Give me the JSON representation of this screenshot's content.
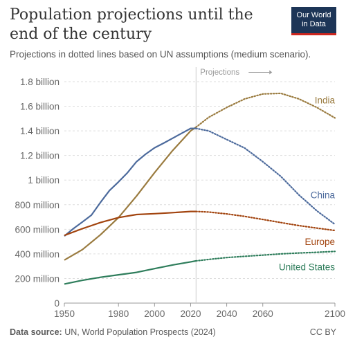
{
  "header": {
    "title": "Population projections until the end of the century",
    "subtitle": "Projections in dotted lines based on UN assumptions (medium scenario).",
    "logo_line1": "Our World",
    "logo_line2": "in Data"
  },
  "footer": {
    "source_label": "Data source:",
    "source_text": "UN, World Population Prospects (2024)",
    "license": "CC BY"
  },
  "chart_data": {
    "type": "line",
    "title": "Population projections until the end of the century",
    "subtitle": "Projections in dotted lines based on UN assumptions (medium scenario).",
    "xlim": [
      1950,
      2100
    ],
    "ylim": [
      0,
      1800000000
    ],
    "x_ticks": [
      1950,
      1980,
      2000,
      2020,
      2040,
      2060,
      2100
    ],
    "y_ticks": [
      {
        "value": 0,
        "label": "0"
      },
      {
        "value": 200000000,
        "label": "200 million"
      },
      {
        "value": 400000000,
        "label": "400 million"
      },
      {
        "value": 600000000,
        "label": "600 million"
      },
      {
        "value": 800000000,
        "label": "800 million"
      },
      {
        "value": 1000000000,
        "label": "1 billion"
      },
      {
        "value": 1200000000,
        "label": "1.2 billion"
      },
      {
        "value": 1400000000,
        "label": "1.4 billion"
      },
      {
        "value": 1600000000,
        "label": "1.6 billion"
      },
      {
        "value": 1800000000,
        "label": "1.8 billion"
      }
    ],
    "grid": true,
    "projection_start": 2023,
    "projection_label": "Projections",
    "series": [
      {
        "name": "India",
        "color": "#9a7b3f",
        "historical": [
          [
            1950,
            350000000
          ],
          [
            1960,
            435000000
          ],
          [
            1970,
            555000000
          ],
          [
            1980,
            695000000
          ],
          [
            1990,
            870000000
          ],
          [
            2000,
            1060000000
          ],
          [
            2010,
            1240000000
          ],
          [
            2020,
            1400000000
          ],
          [
            2023,
            1430000000
          ]
        ],
        "projected": [
          [
            2023,
            1430000000
          ],
          [
            2030,
            1510000000
          ],
          [
            2040,
            1590000000
          ],
          [
            2050,
            1660000000
          ],
          [
            2060,
            1700000000
          ],
          [
            2070,
            1705000000
          ],
          [
            2080,
            1660000000
          ],
          [
            2090,
            1590000000
          ],
          [
            2100,
            1505000000
          ]
        ]
      },
      {
        "name": "China",
        "color": "#4c6a9c",
        "historical": [
          [
            1950,
            545000000
          ],
          [
            1955,
            605000000
          ],
          [
            1960,
            660000000
          ],
          [
            1965,
            715000000
          ],
          [
            1970,
            818000000
          ],
          [
            1975,
            915000000
          ],
          [
            1980,
            985000000
          ],
          [
            1985,
            1060000000
          ],
          [
            1990,
            1150000000
          ],
          [
            1995,
            1210000000
          ],
          [
            2000,
            1262000000
          ],
          [
            2005,
            1300000000
          ],
          [
            2010,
            1340000000
          ],
          [
            2015,
            1380000000
          ],
          [
            2020,
            1420000000
          ],
          [
            2023,
            1420000000
          ]
        ],
        "projected": [
          [
            2023,
            1420000000
          ],
          [
            2030,
            1400000000
          ],
          [
            2040,
            1330000000
          ],
          [
            2050,
            1260000000
          ],
          [
            2060,
            1150000000
          ],
          [
            2070,
            1030000000
          ],
          [
            2080,
            880000000
          ],
          [
            2090,
            750000000
          ],
          [
            2100,
            640000000
          ]
        ]
      },
      {
        "name": "Europe",
        "color": "#a2440f",
        "historical": [
          [
            1950,
            550000000
          ],
          [
            1960,
            605000000
          ],
          [
            1970,
            655000000
          ],
          [
            1980,
            695000000
          ],
          [
            1990,
            720000000
          ],
          [
            2000,
            727000000
          ],
          [
            2010,
            735000000
          ],
          [
            2020,
            745000000
          ],
          [
            2023,
            745000000
          ]
        ],
        "projected": [
          [
            2023,
            745000000
          ],
          [
            2030,
            740000000
          ],
          [
            2040,
            725000000
          ],
          [
            2050,
            705000000
          ],
          [
            2060,
            680000000
          ],
          [
            2070,
            655000000
          ],
          [
            2080,
            630000000
          ],
          [
            2090,
            610000000
          ],
          [
            2100,
            590000000
          ]
        ]
      },
      {
        "name": "United States",
        "color": "#2e7d5b",
        "historical": [
          [
            1950,
            155000000
          ],
          [
            1960,
            185000000
          ],
          [
            1970,
            210000000
          ],
          [
            1980,
            230000000
          ],
          [
            1990,
            250000000
          ],
          [
            2000,
            280000000
          ],
          [
            2010,
            310000000
          ],
          [
            2020,
            335000000
          ],
          [
            2023,
            343000000
          ]
        ],
        "projected": [
          [
            2023,
            343000000
          ],
          [
            2030,
            355000000
          ],
          [
            2040,
            370000000
          ],
          [
            2050,
            380000000
          ],
          [
            2060,
            390000000
          ],
          [
            2070,
            400000000
          ],
          [
            2080,
            407000000
          ],
          [
            2090,
            413000000
          ],
          [
            2100,
            420000000
          ]
        ]
      }
    ]
  }
}
